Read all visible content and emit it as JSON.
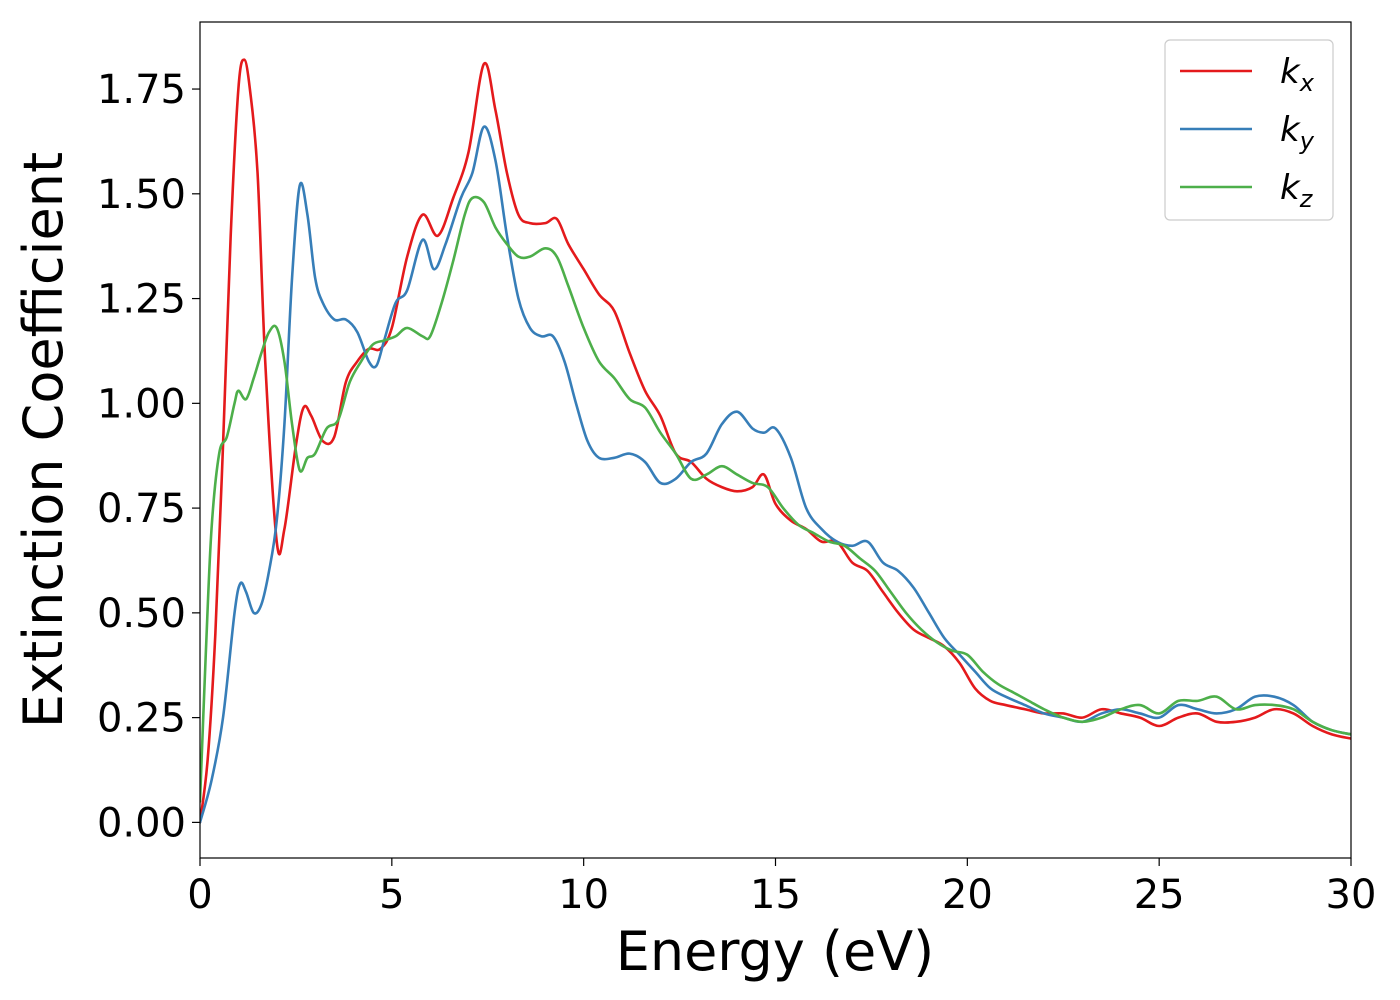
{
  "chart_data": {
    "type": "line",
    "xlabel": "Energy (eV)",
    "ylabel": "Extinction Coefficient",
    "xlim": [
      0,
      30
    ],
    "ylim": [
      -0.085,
      1.91
    ],
    "xticks": [
      "0",
      "5",
      "10",
      "15",
      "20",
      "25",
      "30"
    ],
    "yticks": [
      "0.00",
      "0.25",
      "0.50",
      "0.75",
      "1.00",
      "1.25",
      "1.50",
      "1.75"
    ],
    "grid": false,
    "legend_position": "top-right",
    "series": [
      {
        "name": "k_x",
        "label_main": "k",
        "label_sub": "x",
        "color": "#e41a1c",
        "x": [
          0,
          0.2,
          0.4,
          0.6,
          0.8,
          1.0,
          1.15,
          1.3,
          1.5,
          1.7,
          2.0,
          2.2,
          2.5,
          2.7,
          2.9,
          3.2,
          3.5,
          3.8,
          4.1,
          4.4,
          4.7,
          5.0,
          5.4,
          5.8,
          6.2,
          6.6,
          7.0,
          7.4,
          7.7,
          8.0,
          8.3,
          8.6,
          9.0,
          9.3,
          9.6,
          10.0,
          10.4,
          10.8,
          11.2,
          11.6,
          12.0,
          12.4,
          12.8,
          13.2,
          13.6,
          14.0,
          14.4,
          14.7,
          15.0,
          15.4,
          15.8,
          16.2,
          16.6,
          17.0,
          17.4,
          17.8,
          18.2,
          18.6,
          19.0,
          19.4,
          19.8,
          20.2,
          20.6,
          21.0,
          21.5,
          22.0,
          22.5,
          23.0,
          23.5,
          24.0,
          24.5,
          25.0,
          25.5,
          26.0,
          26.5,
          27.0,
          27.5,
          28.0,
          28.5,
          29.0,
          29.5,
          30.0
        ],
        "values": [
          0.0,
          0.15,
          0.45,
          0.9,
          1.4,
          1.75,
          1.82,
          1.75,
          1.55,
          1.1,
          0.67,
          0.7,
          0.9,
          0.99,
          0.97,
          0.91,
          0.92,
          1.05,
          1.1,
          1.13,
          1.13,
          1.18,
          1.35,
          1.45,
          1.4,
          1.49,
          1.6,
          1.81,
          1.7,
          1.55,
          1.45,
          1.43,
          1.43,
          1.44,
          1.38,
          1.32,
          1.26,
          1.22,
          1.12,
          1.03,
          0.97,
          0.88,
          0.86,
          0.82,
          0.8,
          0.79,
          0.8,
          0.83,
          0.76,
          0.72,
          0.7,
          0.67,
          0.67,
          0.62,
          0.6,
          0.55,
          0.5,
          0.46,
          0.44,
          0.42,
          0.38,
          0.32,
          0.29,
          0.28,
          0.27,
          0.26,
          0.26,
          0.25,
          0.27,
          0.26,
          0.25,
          0.23,
          0.25,
          0.26,
          0.24,
          0.24,
          0.25,
          0.27,
          0.26,
          0.23,
          0.21,
          0.2
        ]
      },
      {
        "name": "k_y",
        "label_main": "k",
        "label_sub": "y",
        "color": "#377eb8",
        "x": [
          0,
          0.3,
          0.6,
          0.9,
          1.05,
          1.2,
          1.4,
          1.6,
          1.8,
          2.0,
          2.2,
          2.4,
          2.6,
          2.8,
          3.0,
          3.2,
          3.5,
          3.8,
          4.1,
          4.4,
          4.6,
          4.8,
          5.1,
          5.4,
          5.8,
          6.1,
          6.4,
          6.8,
          7.1,
          7.4,
          7.7,
          8.0,
          8.3,
          8.6,
          8.9,
          9.2,
          9.5,
          9.8,
          10.1,
          10.4,
          10.8,
          11.2,
          11.6,
          12.0,
          12.4,
          12.8,
          13.2,
          13.6,
          14.0,
          14.4,
          14.7,
          15.0,
          15.4,
          15.8,
          16.2,
          16.6,
          17.0,
          17.4,
          17.8,
          18.2,
          18.6,
          19.0,
          19.4,
          19.8,
          20.2,
          20.6,
          21.0,
          21.5,
          22.0,
          22.5,
          23.0,
          23.5,
          24.0,
          24.5,
          25.0,
          25.5,
          26.0,
          26.5,
          27.0,
          27.5,
          28.0,
          28.5,
          29.0,
          29.5,
          30.0
        ],
        "values": [
          0.0,
          0.1,
          0.25,
          0.5,
          0.57,
          0.55,
          0.5,
          0.52,
          0.6,
          0.72,
          0.95,
          1.3,
          1.52,
          1.45,
          1.3,
          1.24,
          1.2,
          1.2,
          1.17,
          1.1,
          1.09,
          1.15,
          1.24,
          1.27,
          1.39,
          1.32,
          1.38,
          1.49,
          1.55,
          1.66,
          1.58,
          1.4,
          1.25,
          1.18,
          1.16,
          1.16,
          1.1,
          1.0,
          0.91,
          0.87,
          0.87,
          0.88,
          0.86,
          0.81,
          0.82,
          0.86,
          0.88,
          0.95,
          0.98,
          0.94,
          0.93,
          0.94,
          0.87,
          0.75,
          0.7,
          0.67,
          0.66,
          0.67,
          0.62,
          0.6,
          0.56,
          0.5,
          0.44,
          0.4,
          0.36,
          0.32,
          0.3,
          0.28,
          0.26,
          0.25,
          0.24,
          0.26,
          0.27,
          0.26,
          0.25,
          0.28,
          0.27,
          0.26,
          0.27,
          0.3,
          0.3,
          0.28,
          0.24,
          0.22,
          0.21
        ]
      },
      {
        "name": "k_z",
        "label_main": "k",
        "label_sub": "z",
        "color": "#4daf4a",
        "x": [
          0,
          0.15,
          0.3,
          0.5,
          0.7,
          0.9,
          1.0,
          1.2,
          1.4,
          1.6,
          1.8,
          2.0,
          2.2,
          2.4,
          2.6,
          2.8,
          3.0,
          3.3,
          3.6,
          3.9,
          4.2,
          4.5,
          4.8,
          5.1,
          5.4,
          5.8,
          6.0,
          6.3,
          6.6,
          6.9,
          7.1,
          7.4,
          7.7,
          8.0,
          8.3,
          8.6,
          9.0,
          9.3,
          9.6,
          10.0,
          10.4,
          10.8,
          11.2,
          11.6,
          12.0,
          12.4,
          12.8,
          13.2,
          13.6,
          14.0,
          14.4,
          14.8,
          15.2,
          15.6,
          16.0,
          16.4,
          16.8,
          17.2,
          17.6,
          18.0,
          18.4,
          18.8,
          19.2,
          19.6,
          20.0,
          20.4,
          20.8,
          21.2,
          21.6,
          22.0,
          22.5,
          23.0,
          23.5,
          24.0,
          24.5,
          25.0,
          25.5,
          26.0,
          26.5,
          27.0,
          27.5,
          28.0,
          28.5,
          29.0,
          29.5,
          30.0
        ],
        "values": [
          0.05,
          0.4,
          0.7,
          0.88,
          0.92,
          1.0,
          1.03,
          1.01,
          1.06,
          1.12,
          1.17,
          1.18,
          1.1,
          0.95,
          0.84,
          0.87,
          0.88,
          0.94,
          0.96,
          1.05,
          1.1,
          1.14,
          1.15,
          1.16,
          1.18,
          1.16,
          1.16,
          1.24,
          1.34,
          1.45,
          1.49,
          1.48,
          1.42,
          1.38,
          1.35,
          1.35,
          1.37,
          1.35,
          1.28,
          1.18,
          1.1,
          1.06,
          1.01,
          0.99,
          0.93,
          0.88,
          0.82,
          0.83,
          0.85,
          0.83,
          0.81,
          0.8,
          0.75,
          0.71,
          0.69,
          0.67,
          0.66,
          0.63,
          0.6,
          0.55,
          0.5,
          0.46,
          0.43,
          0.41,
          0.4,
          0.36,
          0.33,
          0.31,
          0.29,
          0.27,
          0.25,
          0.24,
          0.25,
          0.27,
          0.28,
          0.26,
          0.29,
          0.29,
          0.3,
          0.27,
          0.28,
          0.28,
          0.27,
          0.24,
          0.22,
          0.21
        ]
      }
    ]
  }
}
